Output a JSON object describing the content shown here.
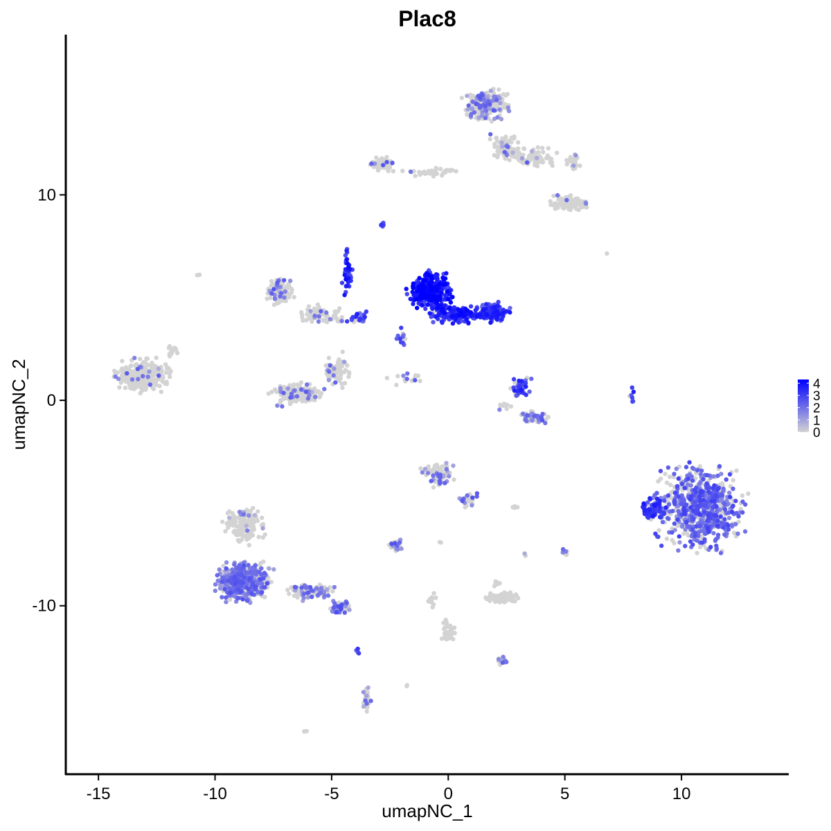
{
  "chart_data": {
    "type": "scatter",
    "title": "Plac8",
    "xlabel": "umapNC_1",
    "ylabel": "umapNC_2",
    "xlim": [
      -16.4,
      14.6
    ],
    "ylim": [
      -18.2,
      17.8
    ],
    "x_ticks": [
      -15,
      -10,
      -5,
      0,
      5,
      10
    ],
    "x_tick_labels": [
      "-15",
      "-10",
      "-5",
      "0",
      "5",
      "10"
    ],
    "y_ticks": [
      -10,
      0,
      10
    ],
    "y_tick_labels": [
      "-10",
      "0",
      "10"
    ],
    "grid": false,
    "legend": {
      "placement": "right",
      "title": "",
      "ticks": [
        0,
        1,
        2,
        3,
        4
      ],
      "tick_labels": [
        "0",
        "1",
        "2",
        "3",
        "4"
      ],
      "min": 0,
      "max": 4.3
    },
    "color_scale": {
      "low": "#d3d3d3",
      "high": "#0000ff"
    },
    "clusters": [
      {
        "cx": -13.1,
        "cy": 1.2,
        "rx": 1.6,
        "ry": 1.1,
        "n": 260,
        "frac": 0.08,
        "mean": 1.6
      },
      {
        "cx": -11.8,
        "cy": 2.3,
        "rx": 0.4,
        "ry": 0.5,
        "n": 15,
        "frac": 0.0,
        "mean": 0
      },
      {
        "cx": -7.2,
        "cy": 5.3,
        "rx": 0.8,
        "ry": 0.8,
        "n": 110,
        "frac": 0.25,
        "mean": 1.8
      },
      {
        "cx": -5.4,
        "cy": 4.2,
        "rx": 1.3,
        "ry": 0.6,
        "n": 70,
        "frac": 0.1,
        "mean": 1.5
      },
      {
        "cx": -4.3,
        "cy": 6.2,
        "rx": 0.3,
        "ry": 1.5,
        "n": 40,
        "frac": 0.95,
        "mean": 3.2
      },
      {
        "cx": -6.5,
        "cy": 0.3,
        "rx": 1.4,
        "ry": 0.7,
        "n": 190,
        "frac": 0.15,
        "mean": 1.6
      },
      {
        "cx": -4.8,
        "cy": 1.4,
        "rx": 0.9,
        "ry": 1.1,
        "n": 70,
        "frac": 0.12,
        "mean": 1.6
      },
      {
        "cx": -3.9,
        "cy": 4.1,
        "rx": 0.6,
        "ry": 0.5,
        "n": 25,
        "frac": 0.8,
        "mean": 2.8
      },
      {
        "cx": -0.8,
        "cy": 5.3,
        "rx": 1.1,
        "ry": 1.2,
        "n": 330,
        "frac": 0.99,
        "mean": 3.6
      },
      {
        "cx": 0.4,
        "cy": 4.2,
        "rx": 1.6,
        "ry": 0.6,
        "n": 160,
        "frac": 0.98,
        "mean": 3.3
      },
      {
        "cx": 1.9,
        "cy": 4.3,
        "rx": 0.9,
        "ry": 0.6,
        "n": 120,
        "frac": 0.95,
        "mean": 3.0
      },
      {
        "cx": -2.0,
        "cy": 3.0,
        "rx": 0.3,
        "ry": 0.8,
        "n": 12,
        "frac": 0.8,
        "mean": 2.6
      },
      {
        "cx": -1.9,
        "cy": 1.1,
        "rx": 1.0,
        "ry": 0.5,
        "n": 15,
        "frac": 0.4,
        "mean": 2.0
      },
      {
        "cx": -2.8,
        "cy": 11.5,
        "rx": 0.7,
        "ry": 0.5,
        "n": 70,
        "frac": 0.06,
        "mean": 2.0
      },
      {
        "cx": -0.7,
        "cy": 11.1,
        "rx": 1.6,
        "ry": 0.3,
        "n": 40,
        "frac": 0.05,
        "mean": 2.0
      },
      {
        "cx": 1.6,
        "cy": 14.4,
        "rx": 1.2,
        "ry": 1.0,
        "n": 240,
        "frac": 0.25,
        "mean": 1.7
      },
      {
        "cx": 2.5,
        "cy": 12.3,
        "rx": 1.0,
        "ry": 0.9,
        "n": 70,
        "frac": 0.08,
        "mean": 1.5
      },
      {
        "cx": 3.6,
        "cy": 11.8,
        "rx": 1.4,
        "ry": 0.6,
        "n": 80,
        "frac": 0.05,
        "mean": 1.6
      },
      {
        "cx": 5.3,
        "cy": 9.6,
        "rx": 1.1,
        "ry": 0.5,
        "n": 120,
        "frac": 0.05,
        "mean": 1.5
      },
      {
        "cx": 5.4,
        "cy": 11.6,
        "rx": 0.5,
        "ry": 0.6,
        "n": 25,
        "frac": 0.1,
        "mean": 1.6
      },
      {
        "cx": -2.8,
        "cy": 8.6,
        "rx": 0.15,
        "ry": 0.2,
        "n": 6,
        "frac": 1.0,
        "mean": 2.5
      },
      {
        "cx": 3.1,
        "cy": 0.6,
        "rx": 0.6,
        "ry": 0.7,
        "n": 45,
        "frac": 0.7,
        "mean": 2.8
      },
      {
        "cx": 3.6,
        "cy": -0.8,
        "rx": 1.0,
        "ry": 0.4,
        "n": 50,
        "frac": 0.5,
        "mean": 1.7
      },
      {
        "cx": 2.4,
        "cy": -0.3,
        "rx": 0.5,
        "ry": 0.3,
        "n": 10,
        "frac": 0.2,
        "mean": 1.5
      },
      {
        "cx": 7.9,
        "cy": 0.3,
        "rx": 0.15,
        "ry": 0.7,
        "n": 8,
        "frac": 0.7,
        "mean": 2.8
      },
      {
        "cx": 10.8,
        "cy": -5.2,
        "rx": 2.4,
        "ry": 2.6,
        "n": 720,
        "frac": 0.65,
        "mean": 2.1
      },
      {
        "cx": 8.8,
        "cy": -5.3,
        "rx": 0.7,
        "ry": 0.9,
        "n": 80,
        "frac": 0.9,
        "mean": 2.9
      },
      {
        "cx": -0.4,
        "cy": -3.6,
        "rx": 0.9,
        "ry": 0.7,
        "n": 80,
        "frac": 0.3,
        "mean": 1.6
      },
      {
        "cx": 0.9,
        "cy": -4.8,
        "rx": 0.5,
        "ry": 0.6,
        "n": 25,
        "frac": 0.4,
        "mean": 1.9
      },
      {
        "cx": -2.3,
        "cy": -7.0,
        "rx": 0.5,
        "ry": 0.4,
        "n": 30,
        "frac": 0.3,
        "mean": 1.8
      },
      {
        "cx": -8.7,
        "cy": -6.1,
        "rx": 1.2,
        "ry": 1.2,
        "n": 150,
        "frac": 0.05,
        "mean": 1.5
      },
      {
        "cx": -8.8,
        "cy": -8.8,
        "rx": 1.5,
        "ry": 1.2,
        "n": 480,
        "frac": 0.6,
        "mean": 1.8
      },
      {
        "cx": -5.9,
        "cy": -9.3,
        "rx": 1.2,
        "ry": 0.5,
        "n": 110,
        "frac": 0.35,
        "mean": 1.7
      },
      {
        "cx": -4.6,
        "cy": -10.1,
        "rx": 0.6,
        "ry": 0.4,
        "n": 45,
        "frac": 0.55,
        "mean": 1.9
      },
      {
        "cx": 2.3,
        "cy": -9.6,
        "rx": 0.8,
        "ry": 0.3,
        "n": 75,
        "frac": 0.0,
        "mean": 0
      },
      {
        "cx": 2.1,
        "cy": -8.9,
        "rx": 0.2,
        "ry": 0.3,
        "n": 8,
        "frac": 0.3,
        "mean": 1.5
      },
      {
        "cx": 0.0,
        "cy": -11.3,
        "rx": 0.4,
        "ry": 0.8,
        "n": 40,
        "frac": 0.0,
        "mean": 0
      },
      {
        "cx": -0.7,
        "cy": -9.8,
        "rx": 0.2,
        "ry": 0.6,
        "n": 10,
        "frac": 0.0,
        "mean": 0
      },
      {
        "cx": 2.3,
        "cy": -12.7,
        "rx": 0.3,
        "ry": 0.3,
        "n": 12,
        "frac": 0.5,
        "mean": 1.8
      },
      {
        "cx": -3.5,
        "cy": -14.6,
        "rx": 0.25,
        "ry": 0.8,
        "n": 25,
        "frac": 0.4,
        "mean": 1.5
      },
      {
        "cx": 5.0,
        "cy": -7.4,
        "rx": 0.2,
        "ry": 0.3,
        "n": 10,
        "frac": 0.2,
        "mean": 1.5
      },
      {
        "cx": -3.9,
        "cy": -12.3,
        "rx": 0.1,
        "ry": 0.4,
        "n": 4,
        "frac": 1.0,
        "mean": 3.0
      },
      {
        "cx": -6.1,
        "cy": -16.1,
        "rx": 0.1,
        "ry": 0.1,
        "n": 3,
        "frac": 0.0,
        "mean": 0
      },
      {
        "cx": 2.8,
        "cy": -5.2,
        "rx": 0.2,
        "ry": 0.1,
        "n": 4,
        "frac": 0.0,
        "mean": 0
      },
      {
        "cx": 3.3,
        "cy": -7.5,
        "rx": 0.1,
        "ry": 0.2,
        "n": 3,
        "frac": 0.3,
        "mean": 1.5
      },
      {
        "cx": 6.8,
        "cy": 7.1,
        "rx": 0.1,
        "ry": 0.1,
        "n": 1,
        "frac": 0.0,
        "mean": 0
      },
      {
        "cx": -10.7,
        "cy": 6.1,
        "rx": 0.1,
        "ry": 0.1,
        "n": 2,
        "frac": 0.0,
        "mean": 0
      },
      {
        "cx": -1.8,
        "cy": -13.9,
        "rx": 0.1,
        "ry": 0.1,
        "n": 2,
        "frac": 0.0,
        "mean": 0
      },
      {
        "cx": -0.3,
        "cy": -6.9,
        "rx": 0.1,
        "ry": 0.1,
        "n": 2,
        "frac": 0.0,
        "mean": 0
      }
    ]
  }
}
